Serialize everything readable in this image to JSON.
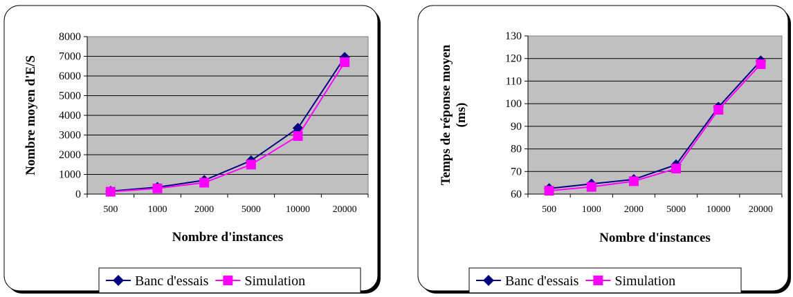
{
  "colors": {
    "banc": "#000080",
    "simulation": "#ff00ff",
    "plot_bg": "#c0c0c0"
  },
  "chart_data": [
    {
      "type": "line",
      "categories": [
        "500",
        "1000",
        "2000",
        "5000",
        "10000",
        "20000"
      ],
      "ylabel": "Nombre moyen d'E/S",
      "xlabel": "Nombre d'instances",
      "ylim": [
        0,
        8000
      ],
      "yticks": [
        0,
        1000,
        2000,
        3000,
        4000,
        5000,
        6000,
        7000,
        8000
      ],
      "grid": true,
      "legend": "bottom",
      "series": [
        {
          "name": "Banc d'essais",
          "marker": "diamond",
          "values": [
            150,
            350,
            700,
            1700,
            3350,
            6950
          ]
        },
        {
          "name": "Simulation",
          "marker": "square",
          "values": [
            120,
            290,
            580,
            1500,
            2950,
            6700
          ]
        }
      ]
    },
    {
      "type": "line",
      "categories": [
        "500",
        "1000",
        "2000",
        "5000",
        "10000",
        "20000"
      ],
      "ylabel": "Temps de réponse moyen (ms)",
      "ylabel_lines": [
        "Temps de réponse moyen",
        "(ms)"
      ],
      "xlabel": "Nombre d'instances",
      "ylim": [
        60,
        130
      ],
      "yticks": [
        60,
        70,
        80,
        90,
        100,
        110,
        120,
        130
      ],
      "grid": true,
      "legend": "bottom",
      "series": [
        {
          "name": "Banc d'essais",
          "marker": "diamond",
          "values": [
            62.5,
            64.5,
            66.5,
            73,
            98.5,
            119
          ]
        },
        {
          "name": "Simulation",
          "marker": "square",
          "values": [
            61.5,
            63.2,
            65.7,
            71.3,
            97.3,
            117.5
          ]
        }
      ]
    }
  ]
}
